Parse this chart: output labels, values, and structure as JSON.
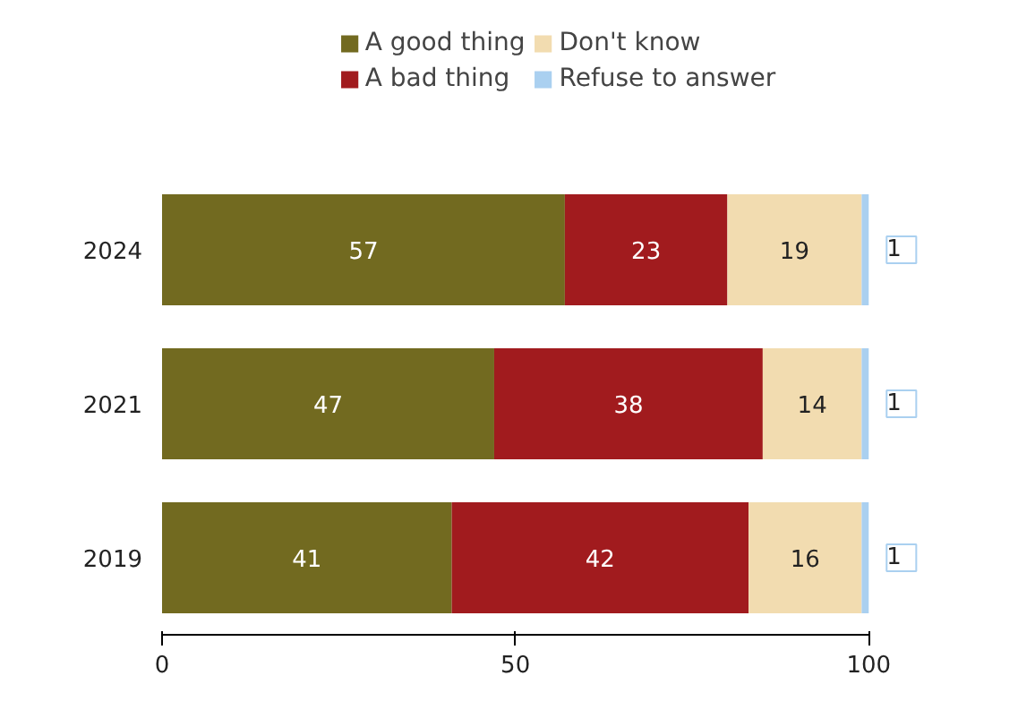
{
  "chart_data": {
    "type": "bar",
    "orientation": "horizontal",
    "stacked": true,
    "categories": [
      "2024",
      "2021",
      "2019"
    ],
    "series": [
      {
        "name": "A good thing",
        "color": "#726a20",
        "values": [
          57,
          47,
          41
        ]
      },
      {
        "name": "A bad thing",
        "color": "#a11b1e",
        "values": [
          23,
          38,
          42
        ]
      },
      {
        "name": "Don't know",
        "color": "#f2dcb0",
        "values": [
          19,
          14,
          16
        ]
      },
      {
        "name": "Refuse to answer",
        "color": "#aad0f0",
        "values": [
          1,
          1,
          1
        ]
      }
    ],
    "xlim": [
      0,
      100
    ],
    "xticks": [
      0,
      50,
      100
    ],
    "data_labels": true,
    "legend": "top",
    "grid": false
  }
}
